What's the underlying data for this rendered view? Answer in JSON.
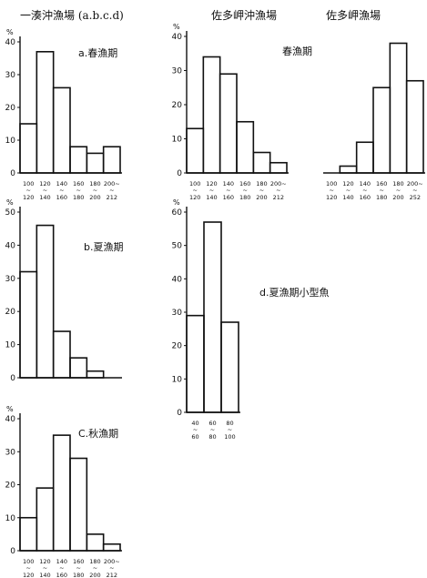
{
  "header": {
    "left": "一湊沖漁場 (a.b.c.d)",
    "middle": "佐多岬沖漁場",
    "right": "佐多岬漁場"
  },
  "chart_data": [
    {
      "id": "a",
      "type": "histogram",
      "title": "a.春漁期",
      "unit": "%",
      "y_ticks": [
        "0",
        "10",
        "20",
        "30",
        "40"
      ],
      "ylim": [
        0,
        40
      ],
      "x_ticks_top": [
        "100",
        "120",
        "140",
        "160",
        "180",
        "200~"
      ],
      "x_ticks_bottom": [
        "120",
        "140",
        "160",
        "180",
        "200",
        "212"
      ],
      "values": [
        15,
        37,
        26,
        8,
        6,
        8
      ]
    },
    {
      "id": "b",
      "type": "histogram",
      "title": "b.夏漁期",
      "unit": "%",
      "y_ticks": [
        "0",
        "10",
        "20",
        "30",
        "40",
        "50"
      ],
      "ylim": [
        0,
        50
      ],
      "values": [
        32,
        46,
        14,
        6,
        2
      ]
    },
    {
      "id": "c",
      "type": "histogram",
      "title": "C.秋漁期",
      "unit": "%",
      "y_ticks": [
        "0",
        "10",
        "20",
        "30",
        "40"
      ],
      "ylim": [
        0,
        40
      ],
      "x_ticks_top": [
        "100",
        "120",
        "140",
        "160",
        "180",
        "200~"
      ],
      "x_ticks_bottom": [
        "120",
        "140",
        "160",
        "180",
        "200",
        "212"
      ],
      "values": [
        10,
        19,
        35,
        28,
        5,
        2
      ]
    },
    {
      "id": "sata_oki",
      "type": "histogram",
      "title": "春漁期",
      "unit": "%",
      "y_ticks": [
        "0",
        "10",
        "20",
        "30",
        "40"
      ],
      "ylim": [
        0,
        40
      ],
      "x_ticks_top": [
        "100",
        "120",
        "140",
        "160",
        "180",
        "200~"
      ],
      "x_ticks_bottom": [
        "120",
        "140",
        "160",
        "180",
        "200",
        "212"
      ],
      "values": [
        13,
        34,
        29,
        15,
        6,
        3
      ]
    },
    {
      "id": "sata_misaki",
      "type": "histogram",
      "unit": "%",
      "x_ticks_top": [
        "100",
        "120",
        "140",
        "160",
        "180",
        "200~"
      ],
      "x_ticks_bottom": [
        "120",
        "140",
        "160",
        "180",
        "200",
        "252"
      ],
      "values": [
        0,
        2,
        9,
        25,
        38,
        27
      ]
    },
    {
      "id": "d",
      "type": "histogram",
      "title": "d.夏漁期小型魚",
      "unit": "%",
      "y_ticks": [
        "0",
        "10",
        "20",
        "30",
        "40",
        "50",
        "60"
      ],
      "ylim": [
        0,
        60
      ],
      "x_ticks_top": [
        "40",
        "60",
        "80"
      ],
      "x_ticks_bottom": [
        "60",
        "80",
        "100"
      ],
      "values": [
        29,
        57,
        27
      ]
    }
  ]
}
